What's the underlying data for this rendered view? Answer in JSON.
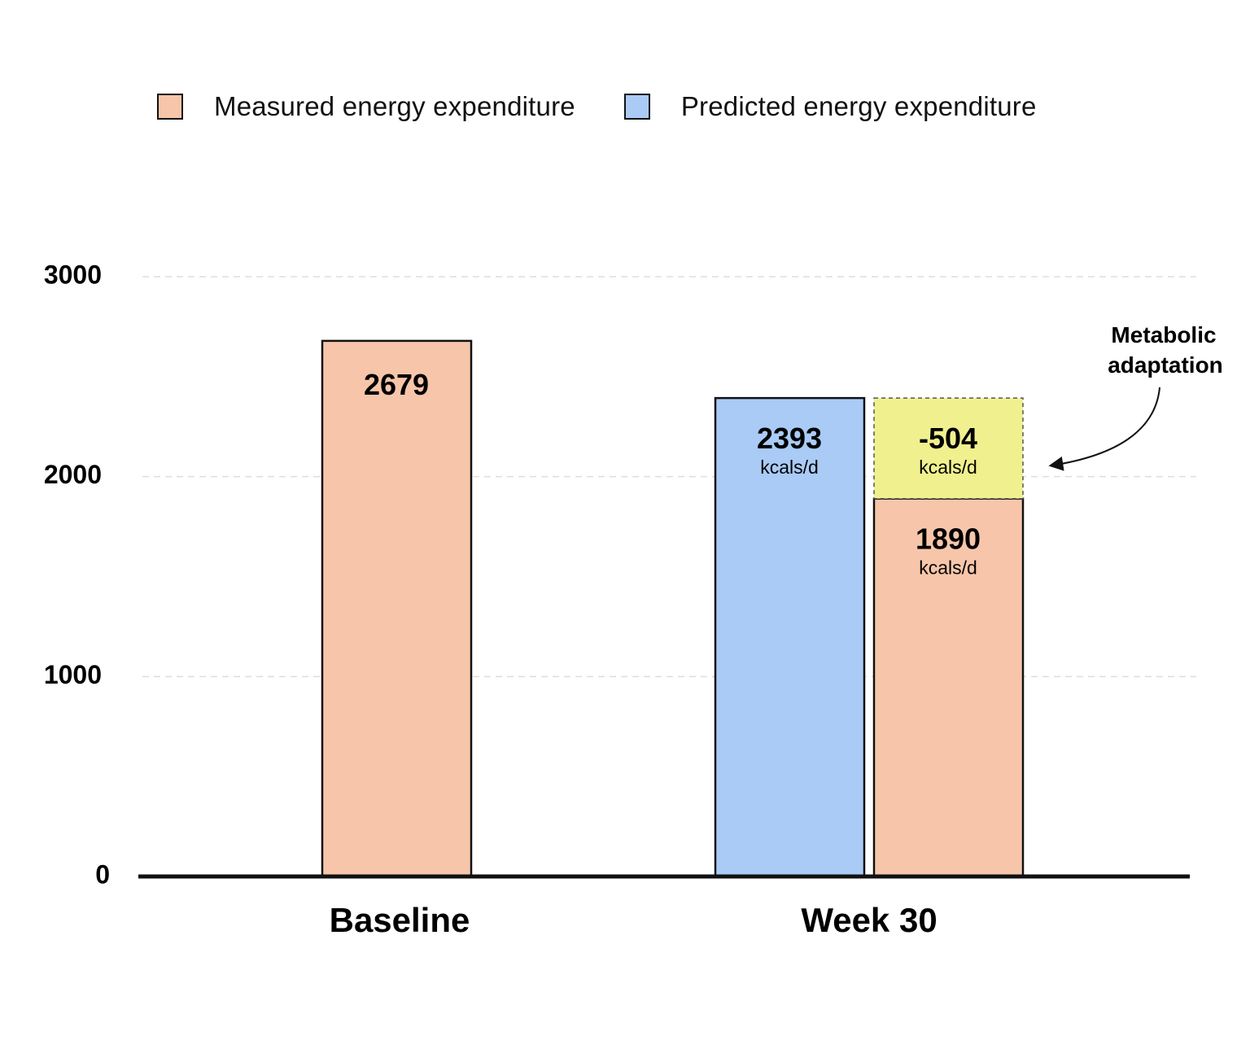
{
  "legend": {
    "measured_label": "Measured energy expenditure",
    "predicted_label": "Predicted energy expenditure"
  },
  "colors": {
    "measured": "#f7c6aa",
    "predicted": "#a9cbf6",
    "adaptation": "#f1f08e",
    "outline": "#111111",
    "grid": "#dddddd"
  },
  "chart_data": {
    "type": "bar",
    "title": "",
    "xlabel": "",
    "ylabel": "",
    "ylim": [
      0,
      3000
    ],
    "yticks": [
      "0",
      "1000",
      "2000",
      "3000"
    ],
    "categories": [
      "Baseline",
      "Week 30"
    ],
    "series": [
      {
        "name": "Measured energy expenditure",
        "values": [
          2679,
          1890
        ]
      },
      {
        "name": "Predicted energy expenditure",
        "values": [
          null,
          2393
        ]
      }
    ],
    "bar_labels": {
      "baseline_measured": {
        "value": "2679",
        "unit": ""
      },
      "week30_predicted": {
        "value": "2393",
        "unit": "kcals/d"
      },
      "week30_measured": {
        "value": "1890",
        "unit": "kcals/d"
      },
      "week30_adaptation": {
        "value": "-504",
        "unit": "kcals/d"
      }
    },
    "adaptation": {
      "from": 1890,
      "to": 2393
    },
    "annotation": {
      "line1": "Metabolic",
      "line2": "adaptation"
    },
    "grid": true
  }
}
